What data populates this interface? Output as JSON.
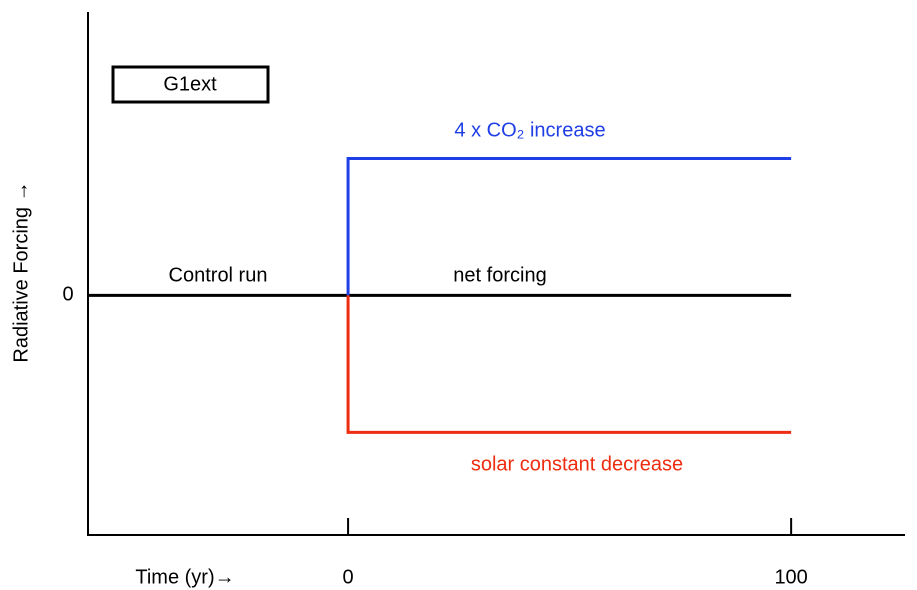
{
  "chart_data": {
    "type": "line",
    "box_label": "G1ext",
    "xlabel": "Time (yr)→",
    "ylabel": "Radiative Forcing →",
    "xlim": [
      -58.7,
      125.7
    ],
    "xticks": [
      0,
      100
    ],
    "ylim": [
      -1.75,
      2.07
    ],
    "yticks": [
      0
    ],
    "series": [
      {
        "color": "#000000",
        "x": [
          -58.7,
          100
        ],
        "values": [
          0,
          0
        ]
      },
      {
        "color": "#1f3fe6",
        "x": [
          0,
          0,
          100
        ],
        "values": [
          0,
          1,
          1
        ]
      },
      {
        "color": "#ee2d10",
        "x": [
          0,
          0,
          100
        ],
        "values": [
          0,
          -1,
          -1
        ]
      }
    ],
    "annotations": [
      "Control run",
      "net forcing",
      "4 x CO₂ increase",
      "solar constant decrease"
    ]
  }
}
